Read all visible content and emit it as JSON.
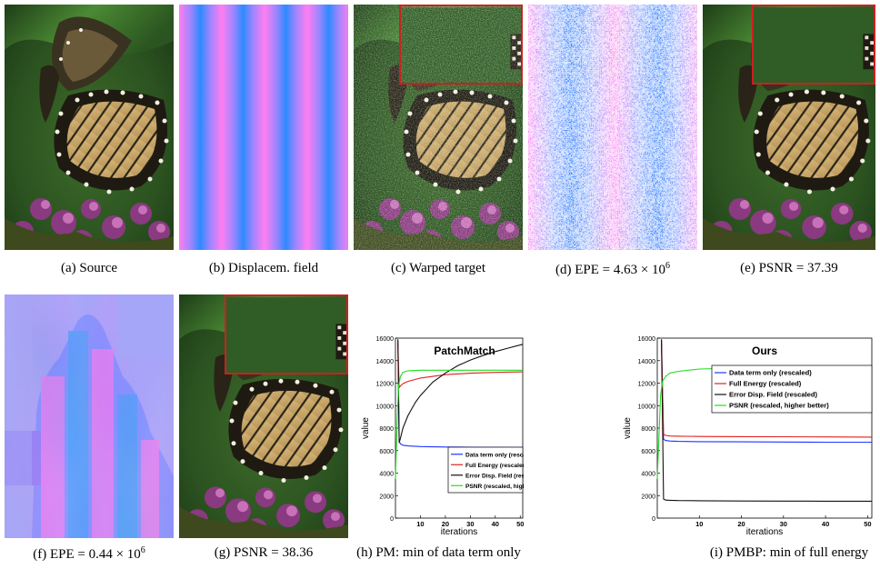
{
  "figure": {
    "captions": {
      "a": "(a) Source",
      "b": "(b) Displacem. field",
      "c": "(c) Warped target",
      "d_prefix": "(d) EPE = 4.63 × 10",
      "d_exp": "6",
      "e": "(e) PSNR = 37.39",
      "f_prefix": "(f) EPE = 0.44 × 10",
      "f_exp": "6",
      "g": "(g) PSNR = 38.36",
      "h": "(h) PM: min of data term only",
      "i": "(i) PMBP: min of full energy"
    },
    "colors": {
      "data_term": "#1f33ff",
      "full_energy": "#e02020",
      "error_field": "#111111",
      "psnr": "#22dd22",
      "inset_border": "#cc2020",
      "leaf_green": "#2d5a24"
    }
  },
  "chart_data": [
    {
      "type": "line",
      "title": "PatchMatch",
      "xlabel": "iterations",
      "ylabel": "value",
      "xlim": [
        0,
        51
      ],
      "ylim": [
        0,
        16000
      ],
      "xticks": [
        10,
        20,
        30,
        40,
        50
      ],
      "yticks": [
        0,
        2000,
        4000,
        6000,
        8000,
        10000,
        12000,
        14000,
        16000
      ],
      "legend_position": "bottom-right",
      "series": [
        {
          "name": "Data term only (rescaled)",
          "color": "#1f33ff",
          "x": [
            1,
            1.5,
            2,
            3,
            5,
            10,
            20,
            30,
            40,
            51
          ],
          "y": [
            15800,
            6800,
            6600,
            6480,
            6420,
            6360,
            6320,
            6300,
            6290,
            6280
          ]
        },
        {
          "name": "Full Energy (rescaled)",
          "color": "#e02020",
          "x": [
            1,
            1.5,
            2,
            3,
            5,
            10,
            20,
            30,
            40,
            51
          ],
          "y": [
            15500,
            11600,
            11750,
            11950,
            12150,
            12450,
            12750,
            12880,
            12950,
            13000
          ]
        },
        {
          "name": "Error Disp. Field (rescaled)",
          "color": "#111111",
          "x": [
            1,
            1.5,
            2,
            3,
            5,
            8,
            10,
            15,
            20,
            25,
            30,
            35,
            40,
            45,
            51
          ],
          "y": [
            15900,
            6700,
            7100,
            8000,
            9100,
            10300,
            10900,
            12100,
            12900,
            13550,
            14050,
            14450,
            14800,
            15100,
            15450
          ]
        },
        {
          "name": "PSNR (rescaled, higher better)",
          "color": "#22dd22",
          "x": [
            0,
            0.8,
            1.3,
            2,
            3,
            5,
            10,
            20,
            30,
            40,
            51
          ],
          "y": [
            3500,
            9500,
            11800,
            12600,
            12950,
            13100,
            13150,
            13150,
            13150,
            13150,
            13150
          ]
        }
      ]
    },
    {
      "type": "line",
      "title": "Ours",
      "xlabel": "iterations",
      "ylabel": "value",
      "xlim": [
        0,
        51
      ],
      "ylim": [
        0,
        16000
      ],
      "xticks": [
        10,
        20,
        30,
        40,
        50
      ],
      "yticks": [
        0,
        2000,
        4000,
        6000,
        8000,
        10000,
        12000,
        14000,
        16000
      ],
      "legend_position": "top-right",
      "series": [
        {
          "name": "Data term only (rescaled)",
          "color": "#1f33ff",
          "x": [
            1,
            1.5,
            2,
            3,
            5,
            10,
            20,
            30,
            40,
            51
          ],
          "y": [
            15800,
            7000,
            6900,
            6850,
            6820,
            6800,
            6780,
            6760,
            6750,
            6750
          ]
        },
        {
          "name": "Full Energy (rescaled)",
          "color": "#e02020",
          "x": [
            1,
            1.5,
            2,
            3,
            5,
            10,
            20,
            30,
            40,
            51
          ],
          "y": [
            15800,
            7450,
            7350,
            7300,
            7280,
            7260,
            7240,
            7230,
            7220,
            7200
          ]
        },
        {
          "name": "Error Disp. Field (rescaled)",
          "color": "#111111",
          "x": [
            1,
            1.5,
            2,
            3,
            5,
            10,
            20,
            30,
            40,
            51
          ],
          "y": [
            15900,
            1700,
            1600,
            1580,
            1560,
            1540,
            1520,
            1510,
            1500,
            1500
          ]
        },
        {
          "name": "PSNR (rescaled, higher better)",
          "color": "#22dd22",
          "x": [
            0,
            0.8,
            1.3,
            2,
            3,
            5,
            10,
            20,
            30,
            40,
            51
          ],
          "y": [
            3500,
            11000,
            12200,
            12600,
            12900,
            13050,
            13250,
            13350,
            13420,
            13480,
            13520
          ]
        }
      ]
    }
  ]
}
